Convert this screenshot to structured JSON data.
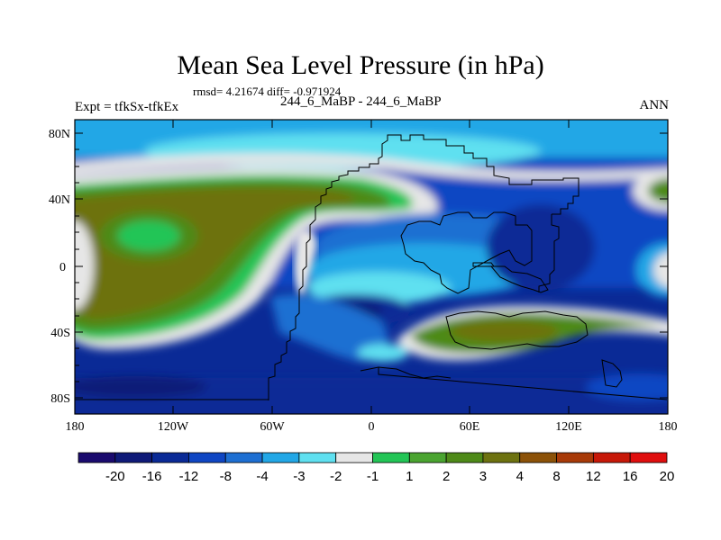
{
  "header": {
    "title": "Mean Sea Level Pressure (in hPa)",
    "stats": "rmsd= 4.21674 diff= -0.971924",
    "expt": "Expt = tfkSx-tfkEx",
    "comparison": "244_6_MaBP - 244_6_MaBP",
    "season": "ANN"
  },
  "axes": {
    "lat_labels": [
      "80N",
      "40N",
      "0",
      "40S",
      "80S"
    ],
    "lon_labels": [
      "180",
      "120W",
      "60W",
      "0",
      "60E",
      "120E",
      "180"
    ]
  },
  "colorbar": {
    "colors": [
      "#1a0a6e",
      "#0f1a78",
      "#0a2a96",
      "#0f46c3",
      "#1e6fd2",
      "#22a7e6",
      "#5fe0f0",
      "#e6e6e6",
      "#23c556",
      "#4aa430",
      "#4e8a18",
      "#6d7210",
      "#8c5208",
      "#a83a08",
      "#c71808",
      "#e00e0e"
    ],
    "labels": [
      "-20",
      "-16",
      "-12",
      "-8",
      "-4",
      "-3",
      "-2",
      "-1",
      "1",
      "2",
      "3",
      "4",
      "8",
      "12",
      "16",
      "20"
    ]
  }
}
